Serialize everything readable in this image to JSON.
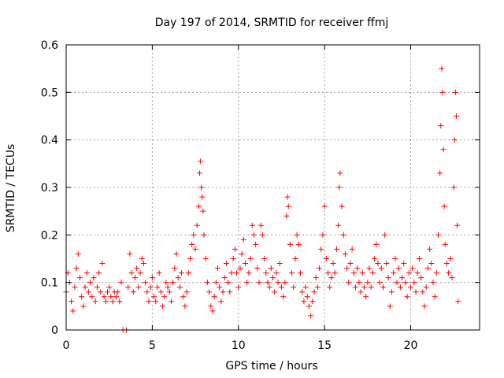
{
  "chart_data": {
    "type": "scatter",
    "title": "Day 197 of 2014, SRMTID for receiver ffmj",
    "xlabel": "GPS time / hours",
    "ylabel": "SRMTID / TECUs",
    "xlim": [
      0,
      24
    ],
    "ylim": [
      0,
      0.6
    ],
    "x_ticks": [
      0,
      5,
      10,
      15,
      20
    ],
    "x_tick_labels": [
      "0",
      "5",
      "10",
      "15",
      "20"
    ],
    "y_ticks": [
      0,
      0.1,
      0.2,
      0.3,
      0.4,
      0.5,
      0.6
    ],
    "y_tick_labels": [
      "0",
      "0.1",
      "0.2",
      "0.3",
      "0.4",
      "0.5",
      "0.6"
    ],
    "grid": true,
    "marker": "plus",
    "series": [
      {
        "name": "SRMTID",
        "color": "#ff0000",
        "points": [
          [
            0.0,
            0.08
          ],
          [
            0.1,
            0.12
          ],
          [
            0.2,
            0.1
          ],
          [
            0.3,
            0.06
          ],
          [
            0.4,
            0.04
          ],
          [
            0.5,
            0.09
          ],
          [
            0.6,
            0.13
          ],
          [
            0.7,
            0.16
          ],
          [
            0.8,
            0.11
          ],
          [
            0.9,
            0.07
          ],
          [
            1.0,
            0.05
          ],
          [
            1.1,
            0.09
          ],
          [
            1.2,
            0.12
          ],
          [
            1.3,
            0.08
          ],
          [
            1.4,
            0.1
          ],
          [
            1.5,
            0.07
          ],
          [
            1.6,
            0.11
          ],
          [
            1.7,
            0.06
          ],
          [
            1.8,
            0.09
          ],
          [
            1.9,
            0.12
          ],
          [
            2.0,
            0.08
          ],
          [
            2.1,
            0.14
          ],
          [
            2.2,
            0.07
          ],
          [
            2.3,
            0.06
          ],
          [
            2.4,
            0.08
          ],
          [
            2.5,
            0.09
          ],
          [
            2.6,
            0.07
          ],
          [
            2.7,
            0.06
          ],
          [
            2.8,
            0.08
          ],
          [
            2.9,
            0.07
          ],
          [
            3.0,
            0.08
          ],
          [
            3.1,
            0.06
          ],
          [
            3.2,
            0.1
          ],
          [
            3.3,
            0.0
          ],
          [
            3.5,
            0.0
          ],
          [
            3.6,
            0.09
          ],
          [
            3.7,
            0.16
          ],
          [
            3.8,
            0.12
          ],
          [
            3.9,
            0.08
          ],
          [
            4.0,
            0.11
          ],
          [
            4.1,
            0.13
          ],
          [
            4.2,
            0.09
          ],
          [
            4.3,
            0.12
          ],
          [
            4.4,
            0.15
          ],
          [
            4.5,
            0.14
          ],
          [
            4.6,
            0.1
          ],
          [
            4.7,
            0.08
          ],
          [
            4.8,
            0.06
          ],
          [
            4.9,
            0.09
          ],
          [
            5.0,
            0.11
          ],
          [
            5.1,
            0.07
          ],
          [
            5.2,
            0.06
          ],
          [
            5.3,
            0.09
          ],
          [
            5.4,
            0.12
          ],
          [
            5.5,
            0.08
          ],
          [
            5.6,
            0.05
          ],
          [
            5.7,
            0.07
          ],
          [
            5.8,
            0.1
          ],
          [
            5.9,
            0.09
          ],
          [
            6.0,
            0.08
          ],
          [
            6.1,
            0.06
          ],
          [
            6.2,
            0.1
          ],
          [
            6.3,
            0.13
          ],
          [
            6.4,
            0.16
          ],
          [
            6.5,
            0.11
          ],
          [
            6.6,
            0.09
          ],
          [
            6.7,
            0.12
          ],
          [
            6.8,
            0.07
          ],
          [
            6.9,
            0.05
          ],
          [
            7.0,
            0.08
          ],
          [
            7.1,
            0.12
          ],
          [
            7.2,
            0.15
          ],
          [
            7.3,
            0.18
          ],
          [
            7.4,
            0.2
          ],
          [
            7.5,
            0.17
          ],
          [
            7.6,
            0.22
          ],
          [
            7.7,
            0.26
          ],
          [
            7.75,
            0.33
          ],
          [
            7.8,
            0.355
          ],
          [
            7.85,
            0.3
          ],
          [
            7.9,
            0.28
          ],
          [
            7.95,
            0.25
          ],
          [
            8.0,
            0.2
          ],
          [
            8.1,
            0.15
          ],
          [
            8.2,
            0.1
          ],
          [
            8.3,
            0.08
          ],
          [
            8.4,
            0.05
          ],
          [
            8.5,
            0.04
          ],
          [
            8.6,
            0.07
          ],
          [
            8.7,
            0.1
          ],
          [
            8.8,
            0.13
          ],
          [
            8.9,
            0.09
          ],
          [
            9.0,
            0.06
          ],
          [
            9.1,
            0.08
          ],
          [
            9.2,
            0.11
          ],
          [
            9.3,
            0.14
          ],
          [
            9.4,
            0.1
          ],
          [
            9.5,
            0.08
          ],
          [
            9.6,
            0.12
          ],
          [
            9.7,
            0.15
          ],
          [
            9.8,
            0.17
          ],
          [
            9.9,
            0.12
          ],
          [
            10.0,
            0.09
          ],
          [
            10.1,
            0.13
          ],
          [
            10.2,
            0.16
          ],
          [
            10.3,
            0.19
          ],
          [
            10.4,
            0.14
          ],
          [
            10.5,
            0.1
          ],
          [
            10.6,
            0.12
          ],
          [
            10.7,
            0.15
          ],
          [
            10.8,
            0.22
          ],
          [
            10.9,
            0.2
          ],
          [
            11.0,
            0.18
          ],
          [
            11.1,
            0.13
          ],
          [
            11.2,
            0.1
          ],
          [
            11.3,
            0.22
          ],
          [
            11.4,
            0.2
          ],
          [
            11.5,
            0.15
          ],
          [
            11.6,
            0.12
          ],
          [
            11.7,
            0.1
          ],
          [
            11.8,
            0.09
          ],
          [
            11.9,
            0.13
          ],
          [
            12.0,
            0.11
          ],
          [
            12.1,
            0.08
          ],
          [
            12.2,
            0.12
          ],
          [
            12.3,
            0.1
          ],
          [
            12.4,
            0.14
          ],
          [
            12.5,
            0.09
          ],
          [
            12.6,
            0.07
          ],
          [
            12.7,
            0.1
          ],
          [
            12.8,
            0.24
          ],
          [
            12.85,
            0.28
          ],
          [
            12.9,
            0.26
          ],
          [
            13.0,
            0.18
          ],
          [
            13.1,
            0.12
          ],
          [
            13.2,
            0.09
          ],
          [
            13.3,
            0.15
          ],
          [
            13.4,
            0.2
          ],
          [
            13.5,
            0.18
          ],
          [
            13.6,
            0.12
          ],
          [
            13.7,
            0.08
          ],
          [
            13.8,
            0.06
          ],
          [
            13.9,
            0.09
          ],
          [
            14.0,
            0.07
          ],
          [
            14.1,
            0.05
          ],
          [
            14.2,
            0.03
          ],
          [
            14.3,
            0.06
          ],
          [
            14.4,
            0.08
          ],
          [
            14.5,
            0.11
          ],
          [
            14.6,
            0.09
          ],
          [
            14.7,
            0.13
          ],
          [
            14.8,
            0.17
          ],
          [
            14.9,
            0.2
          ],
          [
            15.0,
            0.26
          ],
          [
            15.1,
            0.15
          ],
          [
            15.2,
            0.12
          ],
          [
            15.3,
            0.09
          ],
          [
            15.4,
            0.11
          ],
          [
            15.5,
            0.14
          ],
          [
            15.6,
            0.12
          ],
          [
            15.7,
            0.17
          ],
          [
            15.8,
            0.22
          ],
          [
            15.85,
            0.3
          ],
          [
            15.9,
            0.33
          ],
          [
            16.0,
            0.26
          ],
          [
            16.1,
            0.2
          ],
          [
            16.2,
            0.16
          ],
          [
            16.3,
            0.13
          ],
          [
            16.4,
            0.1
          ],
          [
            16.5,
            0.14
          ],
          [
            16.6,
            0.17
          ],
          [
            16.7,
            0.12
          ],
          [
            16.8,
            0.09
          ],
          [
            16.9,
            0.13
          ],
          [
            17.0,
            0.1
          ],
          [
            17.1,
            0.08
          ],
          [
            17.2,
            0.12
          ],
          [
            17.3,
            0.09
          ],
          [
            17.4,
            0.07
          ],
          [
            17.5,
            0.1
          ],
          [
            17.6,
            0.13
          ],
          [
            17.7,
            0.09
          ],
          [
            17.8,
            0.12
          ],
          [
            17.9,
            0.15
          ],
          [
            18.0,
            0.18
          ],
          [
            18.1,
            0.14
          ],
          [
            18.2,
            0.1
          ],
          [
            18.3,
            0.13
          ],
          [
            18.4,
            0.09
          ],
          [
            18.5,
            0.2
          ],
          [
            18.6,
            0.14
          ],
          [
            18.7,
            0.11
          ],
          [
            18.8,
            0.05
          ],
          [
            18.9,
            0.08
          ],
          [
            19.0,
            0.12
          ],
          [
            19.1,
            0.15
          ],
          [
            19.2,
            0.1
          ],
          [
            19.3,
            0.13
          ],
          [
            19.4,
            0.09
          ],
          [
            19.5,
            0.11
          ],
          [
            19.6,
            0.14
          ],
          [
            19.7,
            0.1
          ],
          [
            19.8,
            0.07
          ],
          [
            19.9,
            0.12
          ],
          [
            20.0,
            0.09
          ],
          [
            20.1,
            0.13
          ],
          [
            20.2,
            0.1
          ],
          [
            20.3,
            0.08
          ],
          [
            20.4,
            0.12
          ],
          [
            20.5,
            0.15
          ],
          [
            20.6,
            0.11
          ],
          [
            20.7,
            0.08
          ],
          [
            20.8,
            0.05
          ],
          [
            20.9,
            0.09
          ],
          [
            21.0,
            0.13
          ],
          [
            21.1,
            0.17
          ],
          [
            21.2,
            0.14
          ],
          [
            21.3,
            0.1
          ],
          [
            21.4,
            0.07
          ],
          [
            21.5,
            0.12
          ],
          [
            21.6,
            0.2
          ],
          [
            21.7,
            0.33
          ],
          [
            21.75,
            0.43
          ],
          [
            21.8,
            0.55
          ],
          [
            21.85,
            0.5
          ],
          [
            21.9,
            0.38
          ],
          [
            21.95,
            0.26
          ],
          [
            22.0,
            0.18
          ],
          [
            22.1,
            0.14
          ],
          [
            22.2,
            0.12
          ],
          [
            22.3,
            0.15
          ],
          [
            22.4,
            0.11
          ],
          [
            22.5,
            0.3
          ],
          [
            22.55,
            0.4
          ],
          [
            22.6,
            0.5
          ],
          [
            22.65,
            0.45
          ],
          [
            22.7,
            0.22
          ],
          [
            22.75,
            0.06
          ]
        ]
      }
    ]
  }
}
